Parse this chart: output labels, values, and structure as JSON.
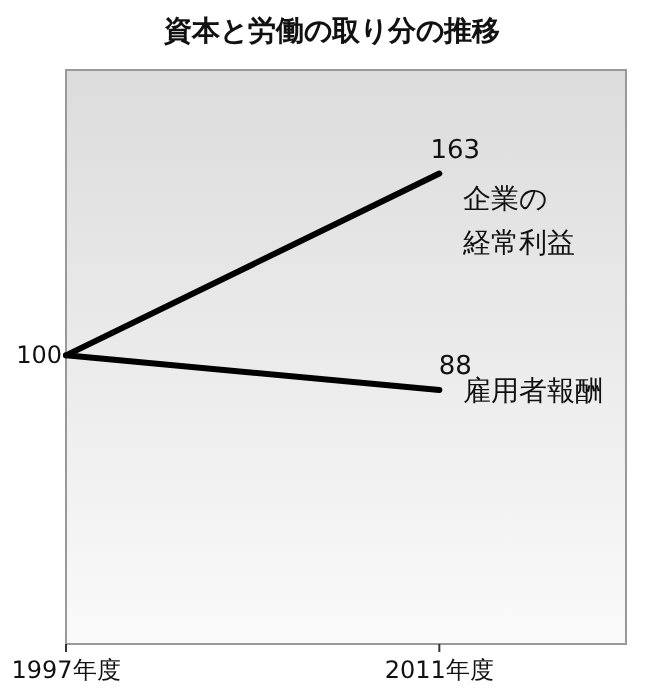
{
  "chart_data": {
    "type": "line",
    "title": "資本と労働の取り分の推移",
    "x": [
      1997,
      2011
    ],
    "xlim": [
      1997,
      2018
    ],
    "xticks": [
      {
        "value": 1997,
        "label": "1997年度"
      },
      {
        "value": 2011,
        "label": "2011年度"
      }
    ],
    "legend": false,
    "marker": "none",
    "line_style": "solid",
    "series": [
      {
        "name": "企業の経常利益",
        "color": "#000000",
        "values": [
          100,
          163
        ],
        "value_labels": [
          "100",
          "163"
        ]
      },
      {
        "name": "雇用者報酬",
        "color": "#000000",
        "values": [
          100,
          88
        ],
        "value_labels": [
          null,
          "88"
        ]
      }
    ]
  }
}
